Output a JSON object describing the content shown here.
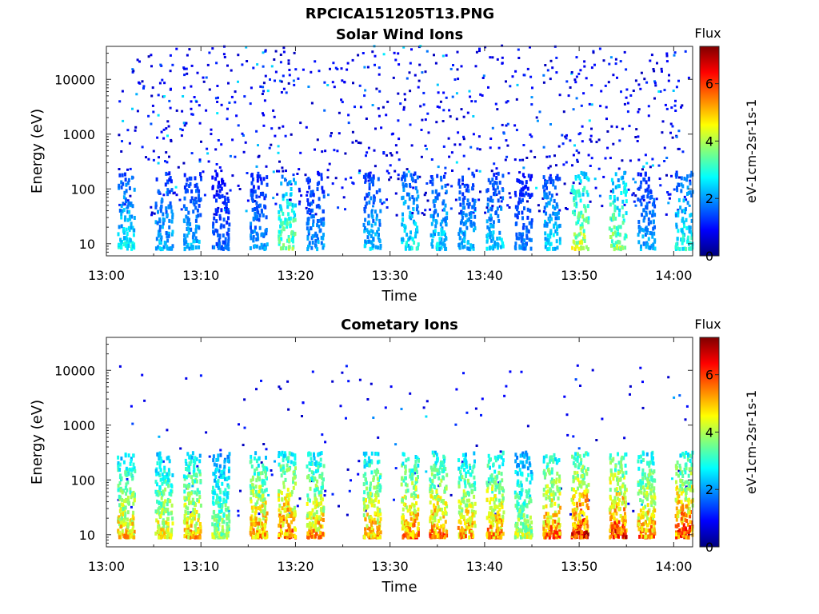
{
  "figure": {
    "title": "RPCICA151205T13.PNG"
  },
  "colors": {
    "scale": [
      "#00007f",
      "#0000ff",
      "#007fff",
      "#00ffff",
      "#7fff7f",
      "#ffff00",
      "#ff7f00",
      "#ff0000",
      "#7f0000"
    ]
  },
  "chart_data": [
    {
      "type": "heatmap",
      "title": "Solar Wind Ions",
      "xlabel": "Time",
      "ylabel": "Energy (eV)",
      "x_ticks": [
        "13:00",
        "13:10",
        "13:20",
        "13:30",
        "13:40",
        "13:50",
        "14:00"
      ],
      "xlim": [
        "13:00",
        "14:02"
      ],
      "y_scale": "log",
      "y_ticks": [
        "10",
        "100",
        "1000",
        "10000"
      ],
      "ylim": [
        6,
        40000
      ],
      "colorbar": {
        "title": "Flux",
        "label": "eV-1cm-2sr-1s-1",
        "range": [
          0,
          7.3
        ],
        "ticks": [
          "0",
          "2",
          "4",
          "6"
        ]
      },
      "bursts": [
        {
          "t": "13:02",
          "v": 3.0
        },
        {
          "t": "13:06",
          "v": 2.5
        },
        {
          "t": "13:09",
          "v": 2.5
        },
        {
          "t": "13:12",
          "v": 1.8
        },
        {
          "t": "13:16",
          "v": 2.2
        },
        {
          "t": "13:19",
          "v": 4.0
        },
        {
          "t": "13:22",
          "v": 2.3
        },
        {
          "t": "13:28",
          "v": 2.6
        },
        {
          "t": "13:32",
          "v": 3.0
        },
        {
          "t": "13:35",
          "v": 2.8
        },
        {
          "t": "13:38",
          "v": 2.5
        },
        {
          "t": "13:41",
          "v": 2.7
        },
        {
          "t": "13:44",
          "v": 2.0
        },
        {
          "t": "13:47",
          "v": 2.8
        },
        {
          "t": "13:50",
          "v": 4.6
        },
        {
          "t": "13:54",
          "v": 4.2
        },
        {
          "t": "13:57",
          "v": 2.4
        },
        {
          "t": "14:01",
          "v": 3.2
        }
      ]
    },
    {
      "type": "heatmap",
      "title": "Cometary Ions",
      "xlabel": "Time",
      "ylabel": "Energy (eV)",
      "x_ticks": [
        "13:00",
        "13:10",
        "13:20",
        "13:30",
        "13:40",
        "13:50",
        "14:00"
      ],
      "xlim": [
        "13:00",
        "14:02"
      ],
      "y_scale": "log",
      "y_ticks": [
        "10",
        "100",
        "1000",
        "10000"
      ],
      "ylim": [
        6,
        40000
      ],
      "colorbar": {
        "title": "Flux",
        "label": "eV-1cm-2sr-1s-1",
        "range": [
          0,
          7.3
        ],
        "ticks": [
          "0",
          "2",
          "4",
          "6"
        ]
      },
      "bursts": [
        {
          "t": "13:02",
          "v": 5.5
        },
        {
          "t": "13:06",
          "v": 5.2
        },
        {
          "t": "13:09",
          "v": 5.6
        },
        {
          "t": "13:12",
          "v": 4.5
        },
        {
          "t": "13:16",
          "v": 6.0
        },
        {
          "t": "13:19",
          "v": 6.4
        },
        {
          "t": "13:22",
          "v": 5.8
        },
        {
          "t": "13:28",
          "v": 5.8
        },
        {
          "t": "13:32",
          "v": 6.2
        },
        {
          "t": "13:35",
          "v": 6.1
        },
        {
          "t": "13:38",
          "v": 5.8
        },
        {
          "t": "13:41",
          "v": 6.0
        },
        {
          "t": "13:44",
          "v": 4.6
        },
        {
          "t": "13:47",
          "v": 6.2
        },
        {
          "t": "13:50",
          "v": 7.0
        },
        {
          "t": "13:54",
          "v": 6.8
        },
        {
          "t": "13:57",
          "v": 6.0
        },
        {
          "t": "14:01",
          "v": 6.6
        }
      ]
    }
  ]
}
